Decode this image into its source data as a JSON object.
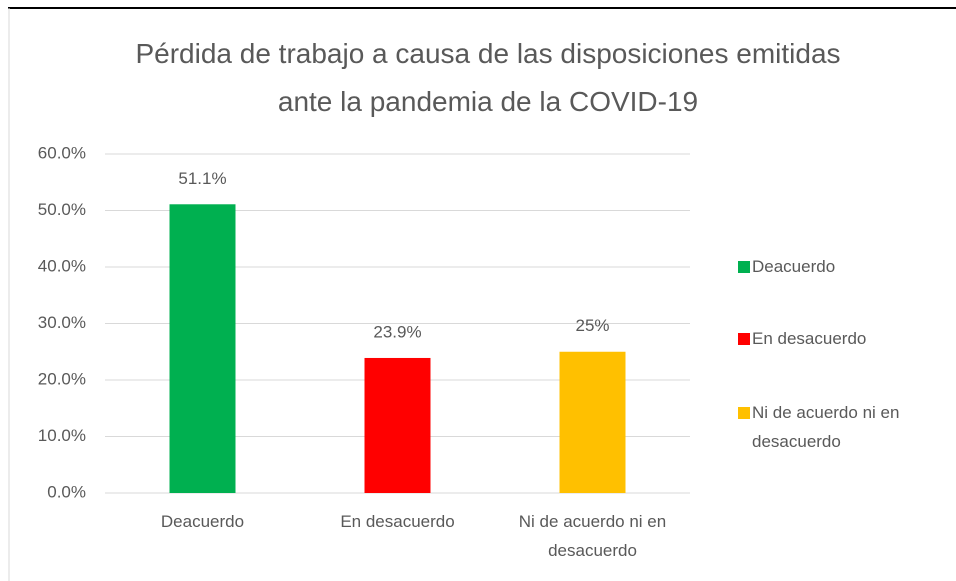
{
  "chart_data": {
    "type": "bar",
    "title": "Pérdida de trabajo a causa de las disposiciones emitidas ante la pandemia de la COVID-19",
    "categories": [
      "Deacuerdo",
      "En desacuerdo",
      "Ni de acuerdo ni en desacuerdo"
    ],
    "values": [
      51.1,
      23.9,
      25
    ],
    "value_labels": [
      "51.1%",
      "23.9%",
      "25%"
    ],
    "colors": [
      "#00b050",
      "#ff0000",
      "#ffc000"
    ],
    "ylim": [
      0,
      60
    ],
    "yticks": [
      {
        "value": 0,
        "label": "0.0%"
      },
      {
        "value": 10,
        "label": "10.0%"
      },
      {
        "value": 20,
        "label": "20.0%"
      },
      {
        "value": 30,
        "label": "30.0%"
      },
      {
        "value": 40,
        "label": "40.0%"
      },
      {
        "value": 50,
        "label": "50.0%"
      },
      {
        "value": 60,
        "label": "60.0%"
      }
    ],
    "grid": true,
    "legend": "right"
  }
}
